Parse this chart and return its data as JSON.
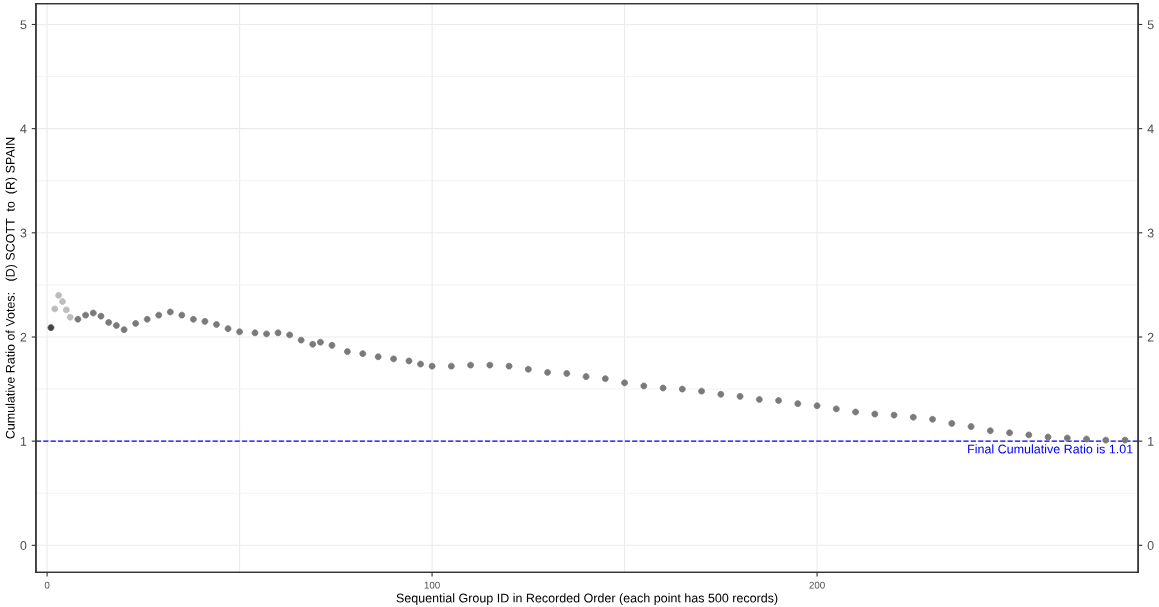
{
  "chart_data": {
    "type": "scatter",
    "xlabel": "Sequential Group ID in Recorded Order (each point has 500 records)",
    "ylabel": "Cumulative Ratio of Votes:   (D) SCOTT  to  (R) SPAIN",
    "xlim": [
      -2.9,
      283.4
    ],
    "xticks": [
      0,
      100,
      200
    ],
    "ylim": [
      -0.26,
      5.2
    ],
    "yticks": [
      0,
      1,
      2,
      3,
      4,
      5
    ],
    "y2lim": [
      -0.26,
      5.2
    ],
    "y2ticks": [
      0,
      1,
      2,
      3,
      4,
      5
    ],
    "grid": true,
    "marker": "circle",
    "series": [
      {
        "color": "#444444",
        "x": [
          1
        ],
        "values": [
          2.09
        ]
      },
      {
        "color": "#bdbdbd",
        "x": [
          2,
          3,
          4,
          5,
          6
        ],
        "values": [
          2.27,
          2.4,
          2.34,
          2.26,
          2.19
        ]
      },
      {
        "color": "#7a7a7a",
        "x": [
          8,
          10,
          12,
          14,
          16,
          18,
          20,
          23,
          26,
          29,
          32,
          35,
          38,
          41,
          44,
          47,
          50,
          54,
          57,
          60,
          63,
          66,
          69,
          71,
          74,
          78,
          82,
          86,
          90,
          94,
          97,
          100,
          105,
          110,
          115,
          120,
          125,
          130,
          135,
          140,
          145,
          150,
          155,
          160,
          165,
          170,
          175,
          180,
          185,
          190,
          195,
          200,
          205,
          210,
          215,
          220,
          225,
          230,
          235,
          240,
          245,
          250,
          255,
          260,
          265,
          270,
          275,
          280
        ],
        "values": [
          2.17,
          2.21,
          2.23,
          2.2,
          2.14,
          2.11,
          2.07,
          2.13,
          2.17,
          2.21,
          2.24,
          2.21,
          2.17,
          2.15,
          2.12,
          2.08,
          2.05,
          2.04,
          2.03,
          2.04,
          2.02,
          1.97,
          1.93,
          1.95,
          1.92,
          1.86,
          1.84,
          1.81,
          1.79,
          1.77,
          1.74,
          1.72,
          1.72,
          1.73,
          1.73,
          1.72,
          1.69,
          1.66,
          1.65,
          1.62,
          1.6,
          1.56,
          1.53,
          1.51,
          1.5,
          1.48,
          1.45,
          1.43,
          1.4,
          1.39,
          1.36,
          1.34,
          1.31,
          1.28,
          1.26,
          1.25,
          1.23,
          1.21,
          1.17,
          1.14,
          1.1,
          1.08,
          1.06,
          1.04,
          1.03,
          1.02,
          1.01,
          1.01
        ]
      }
    ],
    "ref_lines": [
      {
        "axis": "y",
        "value": 1,
        "label": "Final Cumulative Ratio is 1.01",
        "color": "#0000ff",
        "line_style": "dashed"
      }
    ]
  }
}
